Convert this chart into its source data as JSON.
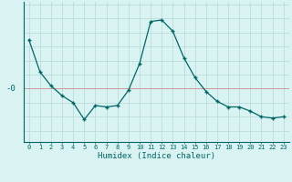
{
  "x": [
    0,
    1,
    2,
    3,
    4,
    5,
    6,
    7,
    8,
    9,
    10,
    11,
    12,
    13,
    14,
    15,
    16,
    17,
    18,
    19,
    20,
    21,
    22,
    23
  ],
  "y": [
    3.5,
    1.2,
    0.2,
    -0.5,
    -1.0,
    -2.2,
    -1.2,
    -1.3,
    -1.2,
    -0.1,
    1.8,
    4.8,
    4.9,
    4.1,
    2.2,
    0.8,
    -0.2,
    -0.9,
    -1.3,
    -1.3,
    -1.6,
    -2.0,
    -2.1,
    -2.0
  ],
  "line_color": "#006666",
  "marker_color": "#006666",
  "bg_color": "#d9f2f2",
  "grid_color": "#b8d8d8",
  "zero_line_color": "#cc9999",
  "xlabel": "Humidex (Indice chaleur)",
  "ylabel": "-0",
  "xlim": [
    -0.5,
    23.5
  ],
  "ylim": [
    -3.8,
    6.2
  ],
  "xticks": [
    0,
    1,
    2,
    3,
    4,
    5,
    6,
    7,
    8,
    9,
    10,
    11,
    12,
    13,
    14,
    15,
    16,
    17,
    18,
    19,
    20,
    21,
    22,
    23
  ],
  "xlabel_fontsize": 6.5,
  "ylabel_fontsize": 6.5,
  "tick_fontsize": 5.0
}
